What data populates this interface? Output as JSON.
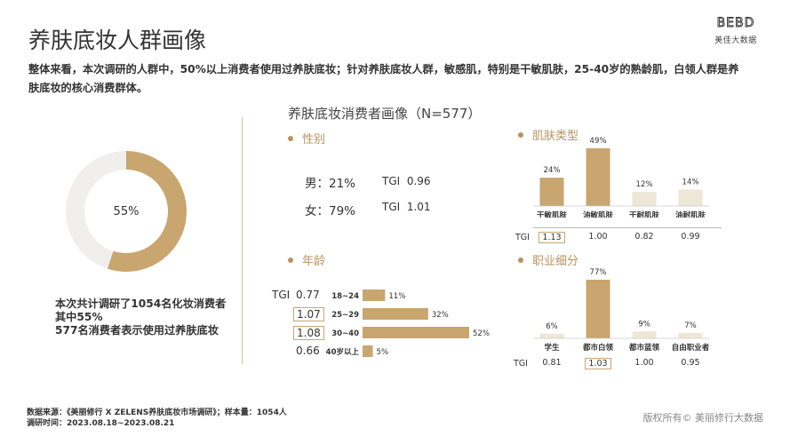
{
  "header": {
    "title": "养肤底妆人群画像",
    "logo_mark": "BEBD",
    "logo_sub": "美佳大数据",
    "summary": "整体来看，本次调研的人群中，50%以上消费者使用过养肤底妆；针对养肤底妆人群，敏感肌，特别是干敏肌肤，25-40岁的熟龄肌，白领人群是养肤底妆的核心消费群体。"
  },
  "panel_title": "养肤底妆消费者画像（N=577）",
  "colors": {
    "accent": "#c9a56f",
    "light": "#eee6d6",
    "donut_rest": "#f1efed"
  },
  "chart_data": [
    {
      "type": "pie",
      "name": "donut",
      "center_label": "55%",
      "values": [
        55,
        45
      ],
      "note_lines": [
        "本次共计调研了1054名化妆消费者",
        "其中55%",
        "577名消费者表示使用过养肤底妆"
      ]
    },
    {
      "type": "table",
      "title": "性别",
      "rows": [
        {
          "label": "男：",
          "value": "21%",
          "tgi_label": "TGI",
          "tgi": "0.96"
        },
        {
          "label": "女：",
          "value": "79%",
          "tgi_label": "TGI",
          "tgi": "1.01"
        }
      ]
    },
    {
      "type": "bar",
      "title": "肌肤类型",
      "categories": [
        "干敏肌肤",
        "油敏肌肤",
        "干耐肌肤",
        "油耐肌肤"
      ],
      "values": [
        24,
        49,
        12,
        14
      ],
      "value_labels": [
        "24%",
        "49%",
        "12%",
        "14%"
      ],
      "tgi_label": "TGI",
      "tgi": [
        "1.13",
        "1.00",
        "0.82",
        "0.99"
      ],
      "highlight_tgi": [
        0
      ]
    },
    {
      "type": "bar",
      "orientation": "horizontal",
      "title": "年龄",
      "categories": [
        "18~24",
        "25~29",
        "30~40",
        "40岁以上"
      ],
      "values": [
        11,
        32,
        52,
        5
      ],
      "value_labels": [
        "11%",
        "32%",
        "52%",
        "5%"
      ],
      "tgi_label": "TGI",
      "tgi": [
        "0.77",
        "1.07",
        "1.08",
        "0.66"
      ],
      "highlight_tgi": [
        1,
        2
      ]
    },
    {
      "type": "bar",
      "title": "职业细分",
      "categories": [
        "学生",
        "都市白领",
        "都市蓝领",
        "自由职业者"
      ],
      "values": [
        6,
        77,
        9,
        7
      ],
      "value_labels": [
        "6%",
        "77%",
        "9%",
        "7%"
      ],
      "tgi_label": "TGI",
      "tgi": [
        "0.81",
        "1.03",
        "1.00",
        "0.95"
      ],
      "highlight_tgi": [
        1
      ]
    }
  ],
  "footer": {
    "source": "数据来源：《美丽修行 X ZELENS养肤底妆市场调研》；样本量：1054人",
    "period": "调研时间：2023.08.18~2023.08.21",
    "copyright": "版权所有© 美丽修行大数据"
  }
}
